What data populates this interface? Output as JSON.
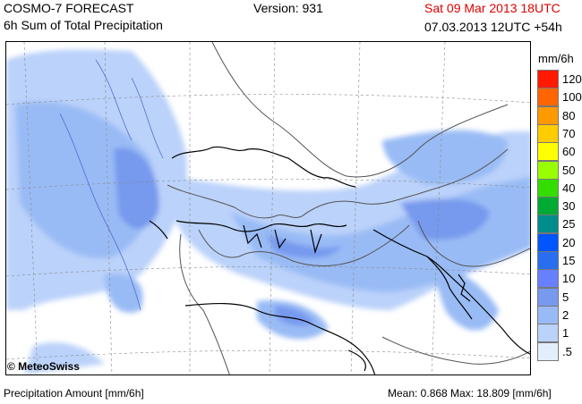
{
  "header": {
    "model": "COSMO-7 FORECAST",
    "product": "6h Sum of Total Precipitation",
    "version": "Version: 931",
    "valid_time": "Sat 09 Mar 2013 18UTC",
    "run_time": "07.03.2013 12UTC +54h",
    "valid_color": "#e00000"
  },
  "legend": {
    "unit": "mm/6h",
    "classes": [
      {
        "label": "120",
        "color": "#ff1a00"
      },
      {
        "label": "100",
        "color": "#ff6600"
      },
      {
        "label": "80",
        "color": "#ff9900"
      },
      {
        "label": "70",
        "color": "#ffcc00"
      },
      {
        "label": "60",
        "color": "#ffff00"
      },
      {
        "label": "50",
        "color": "#99ff00"
      },
      {
        "label": "40",
        "color": "#33dd00"
      },
      {
        "label": "30",
        "color": "#00aa33"
      },
      {
        "label": "25",
        "color": "#008c8c"
      },
      {
        "label": "20",
        "color": "#0055ff"
      },
      {
        "label": "15",
        "color": "#2a6ef0"
      },
      {
        "label": "10",
        "color": "#6680ff"
      },
      {
        "label": "5",
        "color": "#7799ee"
      },
      {
        "label": "2",
        "color": "#99bbf5"
      },
      {
        "label": "1",
        "color": "#bbd2fa"
      },
      {
        "label": ".5",
        "color": "#e3eefd"
      }
    ]
  },
  "map": {
    "copyright": "© MeteoSwiss"
  },
  "footer": {
    "left": "Precipitation Amount [mm/6h]",
    "right": "Mean:  0.868 Max:  18.809 [mm/6h]"
  }
}
